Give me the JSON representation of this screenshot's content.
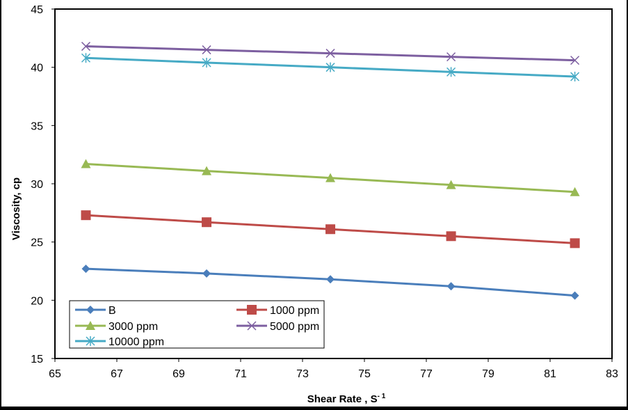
{
  "chart_data": {
    "type": "line",
    "title": "",
    "xlabel": "Shear Rate , S",
    "xlabel_sup": "- 1",
    "ylabel": "Viscosity, cp",
    "xlim": [
      65,
      83
    ],
    "ylim": [
      15,
      45
    ],
    "xticks": [
      "65",
      "67",
      "69",
      "71",
      "73",
      "75",
      "77",
      "79",
      "81",
      "83"
    ],
    "yticks": [
      "15",
      "20",
      "25",
      "30",
      "35",
      "40",
      "45"
    ],
    "grid": false,
    "legend_position": "bottom-left",
    "x": [
      66,
      69.9,
      73.9,
      77.8,
      81.8
    ],
    "series": [
      {
        "name": "B",
        "color": "#4a7ebb",
        "marker": "diamond",
        "values": [
          22.7,
          22.3,
          21.8,
          21.2,
          20.4
        ]
      },
      {
        "name": "1000 ppm",
        "color": "#be4b48",
        "marker": "square",
        "values": [
          27.3,
          26.7,
          26.1,
          25.5,
          24.9
        ]
      },
      {
        "name": "3000 ppm",
        "color": "#98b954",
        "marker": "triangle",
        "values": [
          31.7,
          31.1,
          30.5,
          29.9,
          29.3
        ]
      },
      {
        "name": "5000 ppm",
        "color": "#7d5fa0",
        "marker": "x",
        "values": [
          41.8,
          41.5,
          41.2,
          40.9,
          40.6
        ]
      },
      {
        "name": "10000 ppm",
        "color": "#46aac5",
        "marker": "star",
        "values": [
          40.8,
          40.4,
          40.0,
          39.6,
          39.2
        ]
      }
    ]
  }
}
